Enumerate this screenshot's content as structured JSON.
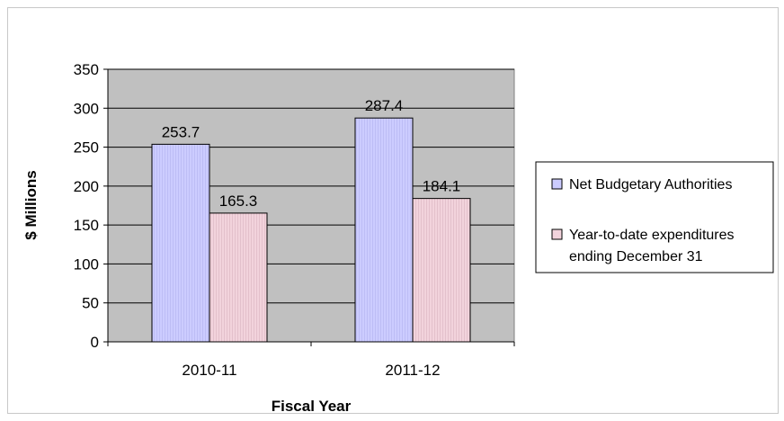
{
  "chart_data": {
    "type": "bar",
    "categories": [
      "2010-11",
      "2011-12"
    ],
    "series": [
      {
        "name": "Net Budgetary Authorities",
        "values": [
          253.7,
          287.4
        ],
        "color": "#ccccff"
      },
      {
        "name": "Year-to-date expenditures ending December 31",
        "legend_lines": [
          "Year-to-date expenditures",
          "ending December 31"
        ],
        "values": [
          165.3,
          184.1
        ],
        "color": "#f2d3dc"
      }
    ],
    "data_labels": [
      "253.7",
      "165.3",
      "287.4",
      "184.1"
    ],
    "xlabel": "Fiscal Year",
    "ylabel": "$ Millions",
    "ylim": [
      0,
      350
    ],
    "yticks": [
      0,
      50,
      100,
      150,
      200,
      250,
      300,
      350
    ],
    "grid": true,
    "legend_position": "right",
    "plot_background": "#c0c0c0"
  }
}
